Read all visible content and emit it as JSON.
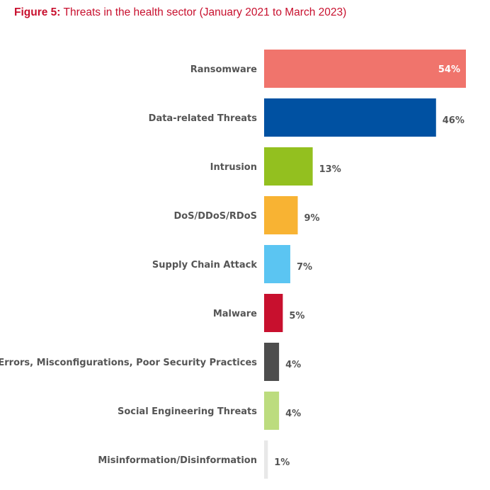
{
  "figure": {
    "prefix": "Figure 5:",
    "title": "Threats in the health sector (January 2021 to March 2023)",
    "title_color": "#c8102e"
  },
  "chart_data": {
    "type": "bar",
    "orientation": "horizontal",
    "title": "Threats in the health sector (January 2021 to March 2023)",
    "xlabel": "",
    "ylabel": "",
    "xlim": [
      0,
      54
    ],
    "grid": false,
    "legend": "none",
    "categories": [
      "Ransomware",
      "Data-related Threats",
      "Intrusion",
      "DoS/DDoS/RDoS",
      "Supply Chain Attack",
      "Malware",
      "Errors, Misconfigurations, Poor Security Practices",
      "Social Engineering Threats",
      "Misinformation/Disinformation"
    ],
    "values": [
      54,
      46,
      13,
      9,
      7,
      5,
      4,
      4,
      1
    ],
    "value_labels": [
      "54%",
      "46%",
      "13%",
      "9%",
      "7%",
      "5%",
      "4%",
      "4%",
      "1%"
    ],
    "colors": [
      "#f0746c",
      "#0051a2",
      "#93c01f",
      "#f8b333",
      "#5bc5f2",
      "#c8102e",
      "#4d4d4d",
      "#bcdc7e",
      "#e8e8e8"
    ]
  }
}
